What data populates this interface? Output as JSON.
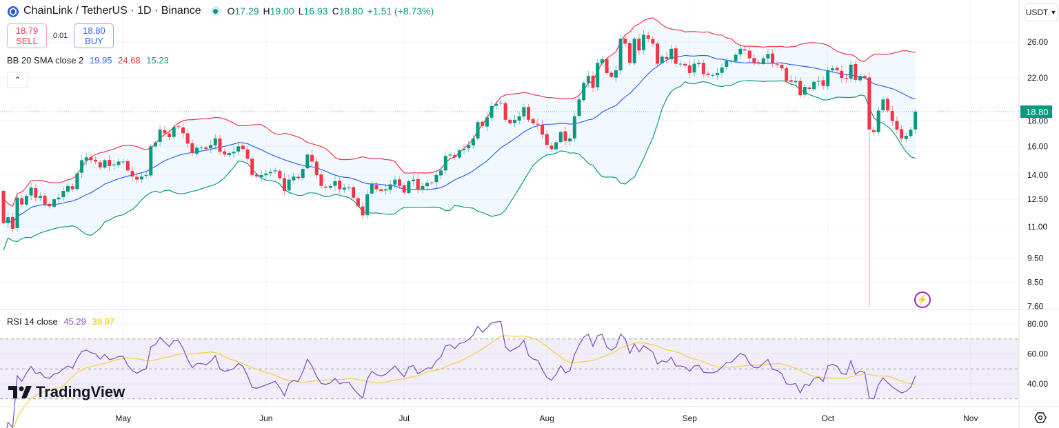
{
  "header": {
    "symbol": "ChainLink / TetherUS · 1D · Binance",
    "ohlc": {
      "o_label": "O",
      "o": "17.29",
      "h_label": "H",
      "h": "19.00",
      "l_label": "L",
      "l": "16.93",
      "c_label": "C",
      "c": "18.80",
      "change": "+1.51 (+8.73%)"
    },
    "sell_price": "18.79",
    "sell_label": "SELL",
    "spread": "0.01",
    "buy_price": "18.80",
    "buy_label": "BUY",
    "collapse_icon": "chevron-up-icon"
  },
  "bb_legend": {
    "label": "BB 20 SMA close 2",
    "basis": "19.95",
    "upper": "24.68",
    "lower": "15.23"
  },
  "rsi_legend": {
    "label": "RSI 14 close",
    "rsi": "45.29",
    "ma": "39.97"
  },
  "currency": "USDT",
  "watermark": "TradingView",
  "colors": {
    "up": "#089981",
    "down": "#f23645",
    "basis": "#2962ff",
    "upper": "#f23645",
    "lower": "#089981",
    "rsi": "#7e57c2",
    "rsi_ma": "#f7d047",
    "last_price_bg": "#089981"
  },
  "chart_data": {
    "type": "candlestick",
    "title": "ChainLink / TetherUS · 1D · Binance",
    "price_scale": "log",
    "yticks": [
      26,
      22,
      18,
      16,
      14,
      12.5,
      11,
      9.5,
      8.5,
      7.6
    ],
    "ytick_labels": [
      "26.00",
      "22.00",
      "18.00",
      "16.00",
      "14.00",
      "12.50",
      "11.00",
      "9.50",
      "8.50",
      "7.60"
    ],
    "last_price": "18.80",
    "first_open": 13.0,
    "closes": [
      11.2,
      11.5,
      10.9,
      12.6,
      12.2,
      12.7,
      13.2,
      12.6,
      12.7,
      12.2,
      12.1,
      12.5,
      12.6,
      13.0,
      13.3,
      13.1,
      14.1,
      15.0,
      15.2,
      15.0,
      14.9,
      14.5,
      15.0,
      14.6,
      14.7,
      14.9,
      14.9,
      14.3,
      13.9,
      13.7,
      13.9,
      14.0,
      16.0,
      16.3,
      17.3,
      17.0,
      16.7,
      17.5,
      17.5,
      17.0,
      16.2,
      15.5,
      15.9,
      15.9,
      15.8,
      16.1,
      16.6,
      15.6,
      15.4,
      15.5,
      15.6,
      16.0,
      15.8,
      15.1,
      14.0,
      13.9,
      14.0,
      14.1,
      14.2,
      14.3,
      13.8,
      13.0,
      13.7,
      13.9,
      13.8,
      14.4,
      15.4,
      14.9,
      14.0,
      13.3,
      13.2,
      13.3,
      13.6,
      13.1,
      13.2,
      13.2,
      12.6,
      12.1,
      11.6,
      12.8,
      13.4,
      13.1,
      13.0,
      13.1,
      13.4,
      13.7,
      13.3,
      12.9,
      13.6,
      13.7,
      13.1,
      13.3,
      13.5,
      13.5,
      14.0,
      14.3,
      15.3,
      15.4,
      15.2,
      15.7,
      15.8,
      16.1,
      16.6,
      17.9,
      17.6,
      18.3,
      19.3,
      19.5,
      19.6,
      18.1,
      17.8,
      18.1,
      18.4,
      19.2,
      18.1,
      17.8,
      17.7,
      16.9,
      16.1,
      15.8,
      16.3,
      17.1,
      16.4,
      16.6,
      18.4,
      19.9,
      21.5,
      22.2,
      21.0,
      23.6,
      24.0,
      22.5,
      22.1,
      22.8,
      26.4,
      25.8,
      23.6,
      26.4,
      25.0,
      26.9,
      26.4,
      25.8,
      23.5,
      24.3,
      24.0,
      25.2,
      23.5,
      23.5,
      23.3,
      22.5,
      23.5,
      23.6,
      22.4,
      22.3,
      22.3,
      22.5,
      23.1,
      23.8,
      23.8,
      24.5,
      25.2,
      25.0,
      24.1,
      23.6,
      23.6,
      24.1,
      24.6,
      23.5,
      23.4,
      23.0,
      21.7,
      21.6,
      21.7,
      20.3,
      21.1,
      20.9,
      21.6,
      21.7,
      21.2,
      22.8,
      23.0,
      22.8,
      22.0,
      21.9,
      23.4,
      21.8,
      22.2,
      22.0,
      17.3,
      17.1,
      18.9,
      19.9,
      18.9,
      18.0,
      17.3,
      16.6,
      16.8,
      17.29,
      18.8
    ],
    "overrides": [
      {
        "index": 188,
        "low": 7.6
      },
      {
        "index": 198,
        "high": 19.0,
        "low": 16.93
      }
    ],
    "indicators": {
      "bb": {
        "length": 20,
        "mult": 2
      },
      "rsi": {
        "length": 14,
        "ma_length": 14,
        "levels": [
          70,
          50,
          30
        ]
      }
    },
    "rsi_yticks": [
      80,
      60,
      40
    ],
    "rsi_ytick_labels": [
      "80.00",
      "60.00",
      "40.00"
    ],
    "month_ticks": [
      {
        "label": "May",
        "day": 26
      },
      {
        "label": "Jun",
        "day": 57
      },
      {
        "label": "Jul",
        "day": 87
      },
      {
        "label": "Aug",
        "day": 118
      },
      {
        "label": "Sep",
        "day": 149
      },
      {
        "label": "Oct",
        "day": 179
      },
      {
        "label": "Nov",
        "day": 210
      }
    ]
  }
}
